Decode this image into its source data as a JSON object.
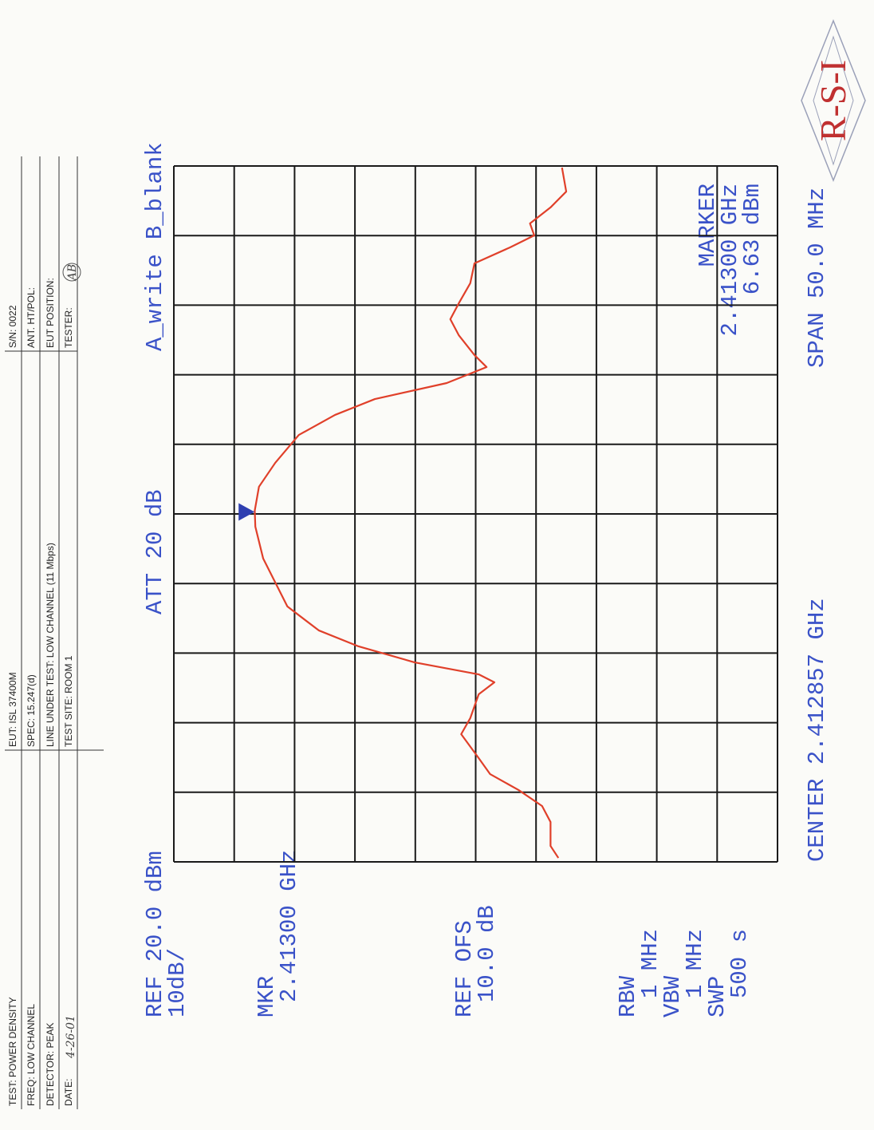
{
  "header": {
    "rows": [
      [
        "TEST: POWER DENSITY",
        "EUT: ISL 37400M",
        "S/N: 0022"
      ],
      [
        "FREQ: LOW CHANNEL",
        "SPEC: 15.247(d)",
        "ANT. HT/POL:"
      ],
      [
        "DETECTOR: PEAK",
        "LINE UNDER TEST: LOW CHANNEL (11 Mbps)",
        "EUT POSITION:"
      ],
      [
        "DATE:",
        "TEST SITE: ROOM 1",
        "TESTER:"
      ]
    ],
    "date_handwritten": "4-26-01",
    "tester_initials": "AB"
  },
  "logo": "R-S-I",
  "chart_data": {
    "type": "line",
    "annotations": [
      "REF 20.0 dBm",
      "10dB/",
      "ATT 20 dB",
      "MKR",
      "2.41300 GHz",
      "REF OFS",
      "10.0 dB",
      "RBW",
      "1 MHz",
      "VBW",
      "1 MHz",
      "SWP",
      "500 s",
      "CENTER 2.412857 GHz",
      "SPAN 50.0 MHz",
      "MARKER",
      "2.41300 GHz",
      "6.63 dBm"
    ],
    "x": [
      2.38814,
      2.389,
      2.39072,
      2.39187,
      2.39302,
      2.39416,
      2.39531,
      2.39703,
      2.39818,
      2.3999,
      2.40076,
      2.40133,
      2.40219,
      2.40334,
      2.40449,
      2.40621,
      2.40793,
      2.40965,
      2.41194,
      2.41309,
      2.41481,
      2.41653,
      2.41853,
      2.41997,
      2.42111,
      2.42226,
      2.42341,
      2.42427,
      2.4257,
      2.42685,
      2.42799,
      2.42943,
      2.43086,
      2.43201,
      2.43287,
      2.43373,
      2.43488,
      2.43602,
      2.43774
    ],
    "series": [
      {
        "name": "A_write",
        "color": "#e0402a",
        "values": [
          -43.7,
          -42.4,
          -42.4,
          -41.0,
          -37.1,
          -32.4,
          -30.5,
          -27.6,
          -29.1,
          -30.5,
          -33.1,
          -30.5,
          -19.9,
          -10.6,
          -4.0,
          1.2,
          3.2,
          5.2,
          6.5,
          6.6,
          5.9,
          3.2,
          -0.7,
          -6.7,
          -13.3,
          -25.2,
          -31.8,
          -29.8,
          -27.2,
          -25.8,
          -27.2,
          -29.1,
          -29.8,
          -35.7,
          -39.7,
          -39.0,
          -42.4,
          -45.0,
          -44.3
        ]
      },
      {
        "name": "B_blank",
        "color": "#2e8b3a",
        "values": [
          null,
          null,
          null,
          null,
          null,
          null,
          null,
          null,
          null,
          null,
          null,
          null,
          null,
          null,
          null,
          null,
          null,
          null,
          null,
          null,
          null,
          null,
          null,
          null,
          null,
          null,
          null,
          null,
          null,
          null,
          null,
          null,
          null,
          null,
          null,
          null,
          null,
          null,
          null
        ]
      }
    ],
    "marker": {
      "x": 2.413,
      "y": 6.63,
      "color": "#2f3fb0"
    },
    "xlim": [
      2.387857,
      2.437857
    ],
    "xticks": [
      2.387857,
      2.392857,
      2.397857,
      2.402857,
      2.407857,
      2.412857,
      2.417857,
      2.422857,
      2.427857,
      2.432857,
      2.437857
    ],
    "ylim": [
      -80,
      20
    ],
    "yticks": [
      -80,
      -70,
      -60,
      -50,
      -40,
      -30,
      -20,
      -10,
      0,
      10,
      20
    ],
    "grid": true
  }
}
